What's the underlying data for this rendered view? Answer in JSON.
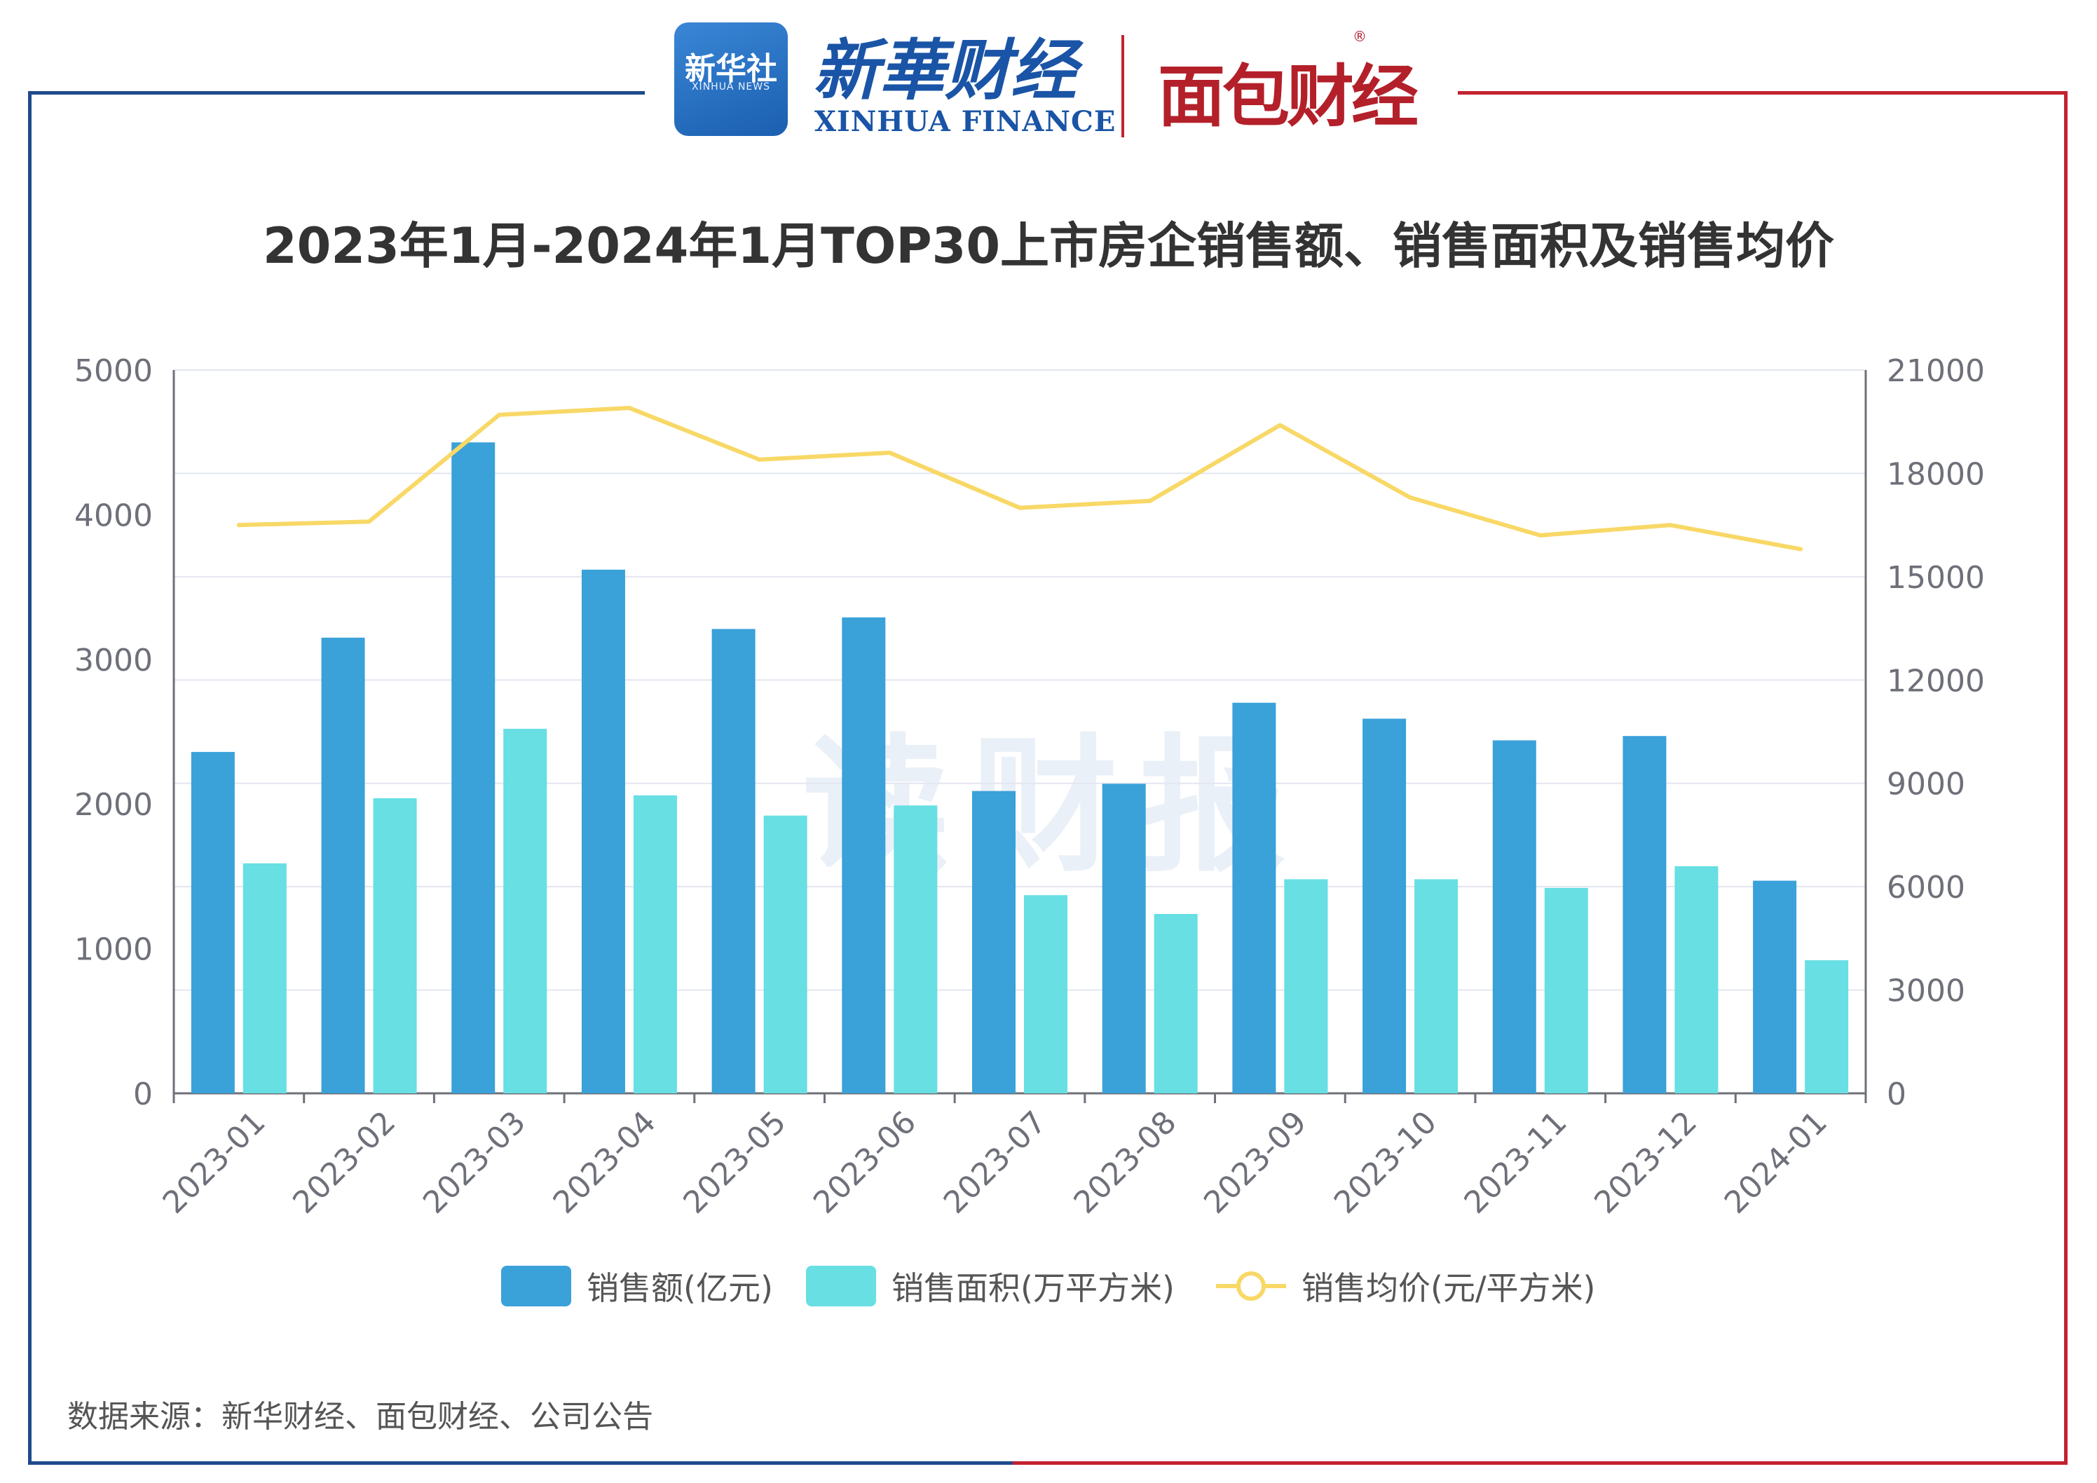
{
  "header": {
    "xinhua_logo_line1": "新华社",
    "xinhua_logo_line2": "XINHUA NEWS",
    "xinhua_finance_cn": "新華财经",
    "xinhua_finance_en": "XINHUA FINANCE",
    "mianbao_logo": "面包财经",
    "registered_mark": "®"
  },
  "watermark": "读财报",
  "source_note": "数据来源：新华财经、面包财经、公司公告",
  "colors": {
    "sales_amount": "#3aa1d9",
    "sales_area": "#67dfe3",
    "avg_price": "#f8d866",
    "frame_left": "#1f4a8c",
    "frame_right": "#c3222e"
  },
  "chart_data": {
    "type": "bar",
    "title": "2023年1月-2024年1月TOP30上市房企销售额、销售面积及销售均价",
    "categories": [
      "2023-01",
      "2023-02",
      "2023-03",
      "2023-04",
      "2023-05",
      "2023-06",
      "2023-07",
      "2023-08",
      "2023-09",
      "2023-10",
      "2023-11",
      "2023-12",
      "2024-01"
    ],
    "y_left": {
      "min": 0,
      "max": 5000,
      "ticks": [
        0,
        1000,
        2000,
        3000,
        4000,
        5000
      ]
    },
    "y_right": {
      "min": 0,
      "max": 21000,
      "ticks": [
        0,
        3000,
        6000,
        9000,
        12000,
        15000,
        18000,
        21000
      ]
    },
    "series": [
      {
        "name": "销售额(亿元)",
        "kind": "bar",
        "axis": "left",
        "values": [
          2360,
          3150,
          4500,
          3620,
          3210,
          3290,
          2090,
          2140,
          2700,
          2590,
          2440,
          2470,
          1470
        ]
      },
      {
        "name": "销售面积(万平方米)",
        "kind": "bar",
        "axis": "left",
        "values": [
          1590,
          2040,
          2520,
          2060,
          1920,
          1990,
          1370,
          1240,
          1480,
          1480,
          1420,
          1570,
          920
        ]
      },
      {
        "name": "销售均价(元/平方米)",
        "kind": "line",
        "axis": "right",
        "values": [
          16500,
          16600,
          19700,
          19900,
          18400,
          18600,
          17000,
          17200,
          19400,
          17300,
          16200,
          16500,
          15800
        ]
      }
    ],
    "grid": true,
    "legend_position": "bottom"
  }
}
